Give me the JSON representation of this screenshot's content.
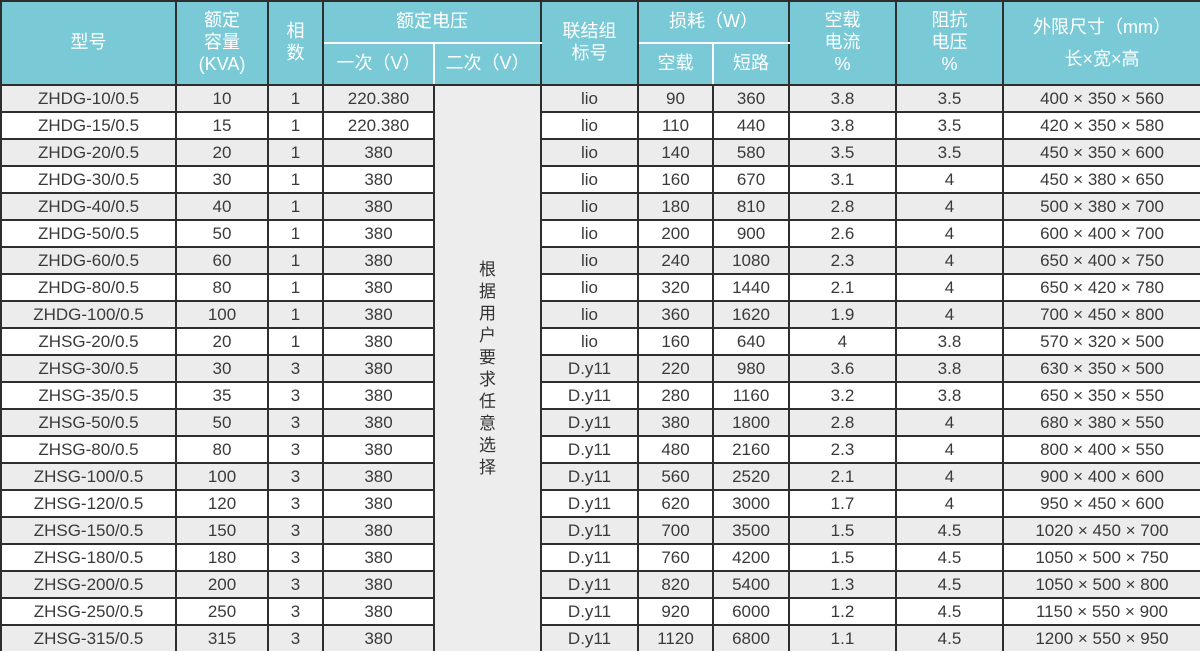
{
  "colors": {
    "header_bg": "#79cad6",
    "header_text": "#ffffff",
    "border_dark": "#2e2e2e",
    "row_odd_bg": "#ececec",
    "row_even_bg": "#ffffff",
    "note_bg": "#ededed",
    "text": "#3a3a3a"
  },
  "header": {
    "model": "型号",
    "capacity": "额定\n容量\n(KVA)",
    "phases": "相\n数",
    "rated_voltage": "额定电压",
    "primary_v": "一次（V）",
    "secondary_v": "二次（V）",
    "connection_group": "联结组\n标号",
    "loss_w": "损耗（W）",
    "no_load": "空载",
    "short_circuit": "短路",
    "no_load_current_pct": "空载\n电流\n%",
    "impedance_voltage_pct": "阻抗\n电压\n%",
    "dimensions": "外限尺寸（mm）\n长×宽×高"
  },
  "secondary_voltage_note": "根据用户要求任意选择",
  "rows": [
    {
      "model": "ZHDG-10/0.5",
      "capacity": "10",
      "phases": "1",
      "primary_v": "220.380",
      "connection": "lio",
      "no_load_w": "90",
      "short_circuit_w": "360",
      "no_load_current_pct": "3.8",
      "impedance_pct": "3.5",
      "dimensions": "400 × 350 × 560"
    },
    {
      "model": "ZHDG-15/0.5",
      "capacity": "15",
      "phases": "1",
      "primary_v": "220.380",
      "connection": "lio",
      "no_load_w": "110",
      "short_circuit_w": "440",
      "no_load_current_pct": "3.8",
      "impedance_pct": "3.5",
      "dimensions": "420 × 350 × 580"
    },
    {
      "model": "ZHDG-20/0.5",
      "capacity": "20",
      "phases": "1",
      "primary_v": "380",
      "connection": "lio",
      "no_load_w": "140",
      "short_circuit_w": "580",
      "no_load_current_pct": "3.5",
      "impedance_pct": "3.5",
      "dimensions": "450 × 350 × 600"
    },
    {
      "model": "ZHDG-30/0.5",
      "capacity": "30",
      "phases": "1",
      "primary_v": "380",
      "connection": "lio",
      "no_load_w": "160",
      "short_circuit_w": "670",
      "no_load_current_pct": "3.1",
      "impedance_pct": "4",
      "dimensions": "450 × 380 × 650"
    },
    {
      "model": "ZHDG-40/0.5",
      "capacity": "40",
      "phases": "1",
      "primary_v": "380",
      "connection": "lio",
      "no_load_w": "180",
      "short_circuit_w": "810",
      "no_load_current_pct": "2.8",
      "impedance_pct": "4",
      "dimensions": "500 × 380 × 700"
    },
    {
      "model": "ZHDG-50/0.5",
      "capacity": "50",
      "phases": "1",
      "primary_v": "380",
      "connection": "lio",
      "no_load_w": "200",
      "short_circuit_w": "900",
      "no_load_current_pct": "2.6",
      "impedance_pct": "4",
      "dimensions": "600 × 400 × 700"
    },
    {
      "model": "ZHDG-60/0.5",
      "capacity": "60",
      "phases": "1",
      "primary_v": "380",
      "connection": "lio",
      "no_load_w": "240",
      "short_circuit_w": "1080",
      "no_load_current_pct": "2.3",
      "impedance_pct": "4",
      "dimensions": "650 × 400 × 750"
    },
    {
      "model": "ZHDG-80/0.5",
      "capacity": "80",
      "phases": "1",
      "primary_v": "380",
      "connection": "lio",
      "no_load_w": "320",
      "short_circuit_w": "1440",
      "no_load_current_pct": "2.1",
      "impedance_pct": "4",
      "dimensions": "650 × 420 × 780"
    },
    {
      "model": "ZHDG-100/0.5",
      "capacity": "100",
      "phases": "1",
      "primary_v": "380",
      "connection": "lio",
      "no_load_w": "360",
      "short_circuit_w": "1620",
      "no_load_current_pct": "1.9",
      "impedance_pct": "4",
      "dimensions": "700 × 450 × 800"
    },
    {
      "model": "ZHSG-20/0.5",
      "capacity": "20",
      "phases": "1",
      "primary_v": "380",
      "connection": "lio",
      "no_load_w": "160",
      "short_circuit_w": "640",
      "no_load_current_pct": "4",
      "impedance_pct": "3.8",
      "dimensions": "570 × 320 × 500"
    },
    {
      "model": "ZHSG-30/0.5",
      "capacity": "30",
      "phases": "3",
      "primary_v": "380",
      "connection": "D.y11",
      "no_load_w": "220",
      "short_circuit_w": "980",
      "no_load_current_pct": "3.6",
      "impedance_pct": "3.8",
      "dimensions": "630 × 350 × 500"
    },
    {
      "model": "ZHSG-35/0.5",
      "capacity": "35",
      "phases": "3",
      "primary_v": "380",
      "connection": "D.y11",
      "no_load_w": "280",
      "short_circuit_w": "1160",
      "no_load_current_pct": "3.2",
      "impedance_pct": "3.8",
      "dimensions": "650 × 350 × 550"
    },
    {
      "model": "ZHSG-50/0.5",
      "capacity": "50",
      "phases": "3",
      "primary_v": "380",
      "connection": "D.y11",
      "no_load_w": "380",
      "short_circuit_w": "1800",
      "no_load_current_pct": "2.8",
      "impedance_pct": "4",
      "dimensions": "680 × 380 × 550"
    },
    {
      "model": "ZHSG-80/0.5",
      "capacity": "80",
      "phases": "3",
      "primary_v": "380",
      "connection": "D.y11",
      "no_load_w": "480",
      "short_circuit_w": "2160",
      "no_load_current_pct": "2.3",
      "impedance_pct": "4",
      "dimensions": "800 × 400 × 550"
    },
    {
      "model": "ZHSG-100/0.5",
      "capacity": "100",
      "phases": "3",
      "primary_v": "380",
      "connection": "D.y11",
      "no_load_w": "560",
      "short_circuit_w": "2520",
      "no_load_current_pct": "2.1",
      "impedance_pct": "4",
      "dimensions": "900 × 400 × 600"
    },
    {
      "model": "ZHSG-120/0.5",
      "capacity": "120",
      "phases": "3",
      "primary_v": "380",
      "connection": "D.y11",
      "no_load_w": "620",
      "short_circuit_w": "3000",
      "no_load_current_pct": "1.7",
      "impedance_pct": "4",
      "dimensions": "950 × 450 × 600"
    },
    {
      "model": "ZHSG-150/0.5",
      "capacity": "150",
      "phases": "3",
      "primary_v": "380",
      "connection": "D.y11",
      "no_load_w": "700",
      "short_circuit_w": "3500",
      "no_load_current_pct": "1.5",
      "impedance_pct": "4.5",
      "dimensions": "1020 × 450 × 700"
    },
    {
      "model": "ZHSG-180/0.5",
      "capacity": "180",
      "phases": "3",
      "primary_v": "380",
      "connection": "D.y11",
      "no_load_w": "760",
      "short_circuit_w": "4200",
      "no_load_current_pct": "1.5",
      "impedance_pct": "4.5",
      "dimensions": "1050 × 500 × 750"
    },
    {
      "model": "ZHSG-200/0.5",
      "capacity": "200",
      "phases": "3",
      "primary_v": "380",
      "connection": "D.y11",
      "no_load_w": "820",
      "short_circuit_w": "5400",
      "no_load_current_pct": "1.3",
      "impedance_pct": "4.5",
      "dimensions": "1050 × 500 × 800"
    },
    {
      "model": "ZHSG-250/0.5",
      "capacity": "250",
      "phases": "3",
      "primary_v": "380",
      "connection": "D.y11",
      "no_load_w": "920",
      "short_circuit_w": "6000",
      "no_load_current_pct": "1.2",
      "impedance_pct": "4.5",
      "dimensions": "1150 × 550 × 900"
    },
    {
      "model": "ZHSG-315/0.5",
      "capacity": "315",
      "phases": "3",
      "primary_v": "380",
      "connection": "D.y11",
      "no_load_w": "1120",
      "short_circuit_w": "6800",
      "no_load_current_pct": "1.1",
      "impedance_pct": "4.5",
      "dimensions": "1200 × 550 × 950"
    }
  ]
}
